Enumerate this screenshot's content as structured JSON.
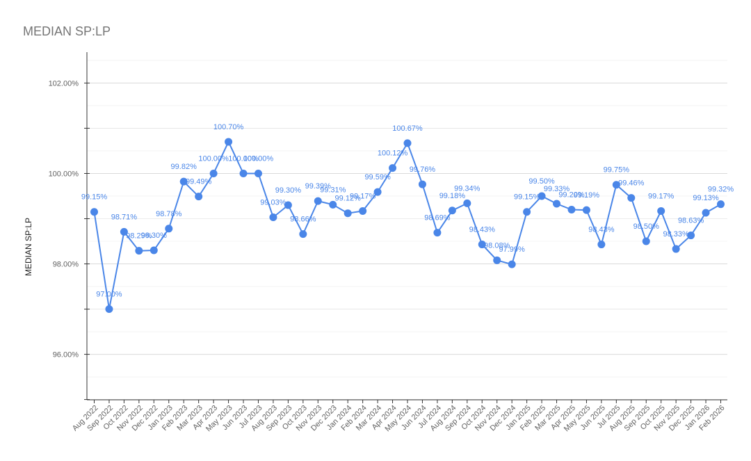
{
  "chart_data": {
    "type": "line",
    "title": "MEDIAN SP:LP",
    "xlabel": "",
    "ylabel": "MEDIAN SP:LP",
    "ylim": [
      95.0,
      102.5
    ],
    "yticks": [
      "96.00%",
      "98.00%",
      "100.00%",
      "102.00%"
    ],
    "ytick_values": [
      96,
      98,
      100,
      102
    ],
    "grid": true,
    "legend": "none",
    "categories": [
      "Aug 2022",
      "Sep 2022",
      "Oct 2022",
      "Nov 2022",
      "Dec 2022",
      "Jan 2023",
      "Feb 2023",
      "Mar 2023",
      "Apr 2023",
      "May 2023",
      "Jun 2023",
      "Jul 2023",
      "Aug 2023",
      "Sep 2023",
      "Oct 2023",
      "Nov 2023",
      "Dec 2023",
      "Jan 2024",
      "Feb 2024",
      "Mar 2024",
      "Apr 2024",
      "May 2024",
      "Jun 2024",
      "Jul 2024",
      "Aug 2024",
      "Sep 2024",
      "Oct 2024",
      "Nov 2024",
      "Dec 2024",
      "Jan 2025",
      "Feb 2025",
      "Mar 2025",
      "Apr 2025",
      "May 2025",
      "Jun 2025",
      "Jul 2025",
      "Aug 2025",
      "Sep 2025",
      "Oct 2025",
      "Nov 2025",
      "Dec 2025",
      "Jan 2026",
      "Feb 2026"
    ],
    "values": [
      99.15,
      97.0,
      98.71,
      98.29,
      98.3,
      98.78,
      99.82,
      99.49,
      100.0,
      100.7,
      100.0,
      100.0,
      99.03,
      99.3,
      98.66,
      99.39,
      99.31,
      99.12,
      99.17,
      99.59,
      100.12,
      100.67,
      99.76,
      98.69,
      99.18,
      99.34,
      98.43,
      98.08,
      97.99,
      99.15,
      99.5,
      99.33,
      99.2,
      99.19,
      98.43,
      99.75,
      99.46,
      98.5,
      99.17,
      98.33,
      98.63,
      99.13,
      99.32
    ],
    "labels": [
      "99.15%",
      "97.00%",
      "98.71%",
      "98.29%",
      "98.30%",
      "98.78%",
      "99.82%",
      "99.49%",
      "100.00%",
      "100.70%",
      "100.00%",
      "100.00%",
      "99.03%",
      "99.30%",
      "98.66%",
      "99.39%",
      "99.31%",
      "99.12%",
      "99.17%",
      "99.59%",
      "100.12%",
      "100.67%",
      "99.76%",
      "98.69%",
      "99.18%",
      "99.34%",
      "98.43%",
      "98.08%",
      "97.99%",
      "99.15%",
      "99.50%",
      "99.33%",
      "99.20%",
      "99.19%",
      "98.43%",
      "99.75%",
      "99.46%",
      "98.50%",
      "99.17%",
      "98.33%",
      "98.63%",
      "99.13%",
      "99.32%"
    ],
    "colors": {
      "series": "#4a86e8",
      "label": "#4a86e8",
      "grid": "#d9d9d9",
      "axis": "#333333"
    }
  }
}
